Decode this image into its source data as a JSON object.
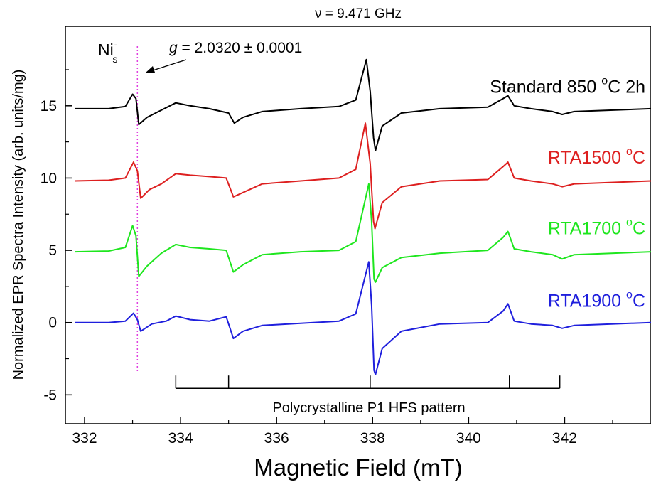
{
  "chart_data": {
    "type": "line",
    "title": "ν = 9.471 GHz",
    "xlabel": "Magnetic Field (mT)",
    "ylabel": "Normalized EPR Spectra Intensity (arb. units/mg)",
    "xlim": [
      331.6,
      343.8
    ],
    "ylim": [
      -7,
      20.5
    ],
    "xticks": [
      332,
      334,
      336,
      338,
      340,
      342
    ],
    "yticks": [
      -5,
      0,
      5,
      10,
      15
    ],
    "grid": false,
    "legend_placement": "right-of-traces",
    "series": [
      {
        "name": "Standard 850 °C 2h",
        "label_main": "Standard 850 ",
        "label_deg": "o",
        "label_tail": "C 2h",
        "color": "#000000",
        "points": [
          [
            331.8,
            14.8
          ],
          [
            332.5,
            14.8
          ],
          [
            332.85,
            14.95
          ],
          [
            333.0,
            15.8
          ],
          [
            333.07,
            15.5
          ],
          [
            333.13,
            13.7
          ],
          [
            333.3,
            14.2
          ],
          [
            333.6,
            14.7
          ],
          [
            333.9,
            15.2
          ],
          [
            334.2,
            15.0
          ],
          [
            334.6,
            14.8
          ],
          [
            335.0,
            14.5
          ],
          [
            335.12,
            13.8
          ],
          [
            335.3,
            14.2
          ],
          [
            335.7,
            14.6
          ],
          [
            336.5,
            14.8
          ],
          [
            337.3,
            14.95
          ],
          [
            337.65,
            15.4
          ],
          [
            337.87,
            18.2
          ],
          [
            337.95,
            16.0
          ],
          [
            338.02,
            12.8
          ],
          [
            338.06,
            11.9
          ],
          [
            338.2,
            13.6
          ],
          [
            338.6,
            14.5
          ],
          [
            339.4,
            14.8
          ],
          [
            340.4,
            14.9
          ],
          [
            340.72,
            15.5
          ],
          [
            340.82,
            15.7
          ],
          [
            340.95,
            15.0
          ],
          [
            341.3,
            14.8
          ],
          [
            341.75,
            14.6
          ],
          [
            341.95,
            14.4
          ],
          [
            342.2,
            14.6
          ],
          [
            343.8,
            14.8
          ]
        ]
      },
      {
        "name": "RTA1500 °C",
        "label_main": "RTA1500 ",
        "label_deg": "o",
        "label_tail": "C",
        "color": "#dd1f1f",
        "points": [
          [
            331.8,
            9.8
          ],
          [
            332.5,
            9.85
          ],
          [
            332.85,
            10.0
          ],
          [
            333.02,
            11.1
          ],
          [
            333.1,
            10.5
          ],
          [
            333.17,
            8.6
          ],
          [
            333.35,
            9.2
          ],
          [
            333.6,
            9.6
          ],
          [
            333.9,
            10.3
          ],
          [
            334.2,
            10.2
          ],
          [
            334.6,
            10.1
          ],
          [
            334.95,
            10.0
          ],
          [
            335.1,
            8.7
          ],
          [
            335.3,
            9.0
          ],
          [
            335.7,
            9.6
          ],
          [
            336.5,
            9.8
          ],
          [
            337.3,
            10.0
          ],
          [
            337.65,
            10.6
          ],
          [
            337.85,
            13.8
          ],
          [
            337.95,
            11.0
          ],
          [
            338.02,
            7.0
          ],
          [
            338.05,
            6.5
          ],
          [
            338.2,
            8.3
          ],
          [
            338.6,
            9.4
          ],
          [
            339.4,
            9.8
          ],
          [
            340.4,
            9.9
          ],
          [
            340.72,
            10.8
          ],
          [
            340.82,
            11.1
          ],
          [
            340.95,
            10.0
          ],
          [
            341.3,
            9.8
          ],
          [
            341.75,
            9.6
          ],
          [
            341.95,
            9.4
          ],
          [
            342.2,
            9.6
          ],
          [
            343.8,
            9.8
          ]
        ]
      },
      {
        "name": "RTA1700 °C",
        "label_main": "RTA1700 ",
        "label_deg": "o",
        "label_tail": "C",
        "color": "#1ee61e",
        "points": [
          [
            331.8,
            4.9
          ],
          [
            332.5,
            4.95
          ],
          [
            332.85,
            5.2
          ],
          [
            333.0,
            6.7
          ],
          [
            333.07,
            6.0
          ],
          [
            333.13,
            3.2
          ],
          [
            333.3,
            3.9
          ],
          [
            333.6,
            4.8
          ],
          [
            333.9,
            5.4
          ],
          [
            334.2,
            5.2
          ],
          [
            334.6,
            5.1
          ],
          [
            334.95,
            5.0
          ],
          [
            335.1,
            3.5
          ],
          [
            335.3,
            4.0
          ],
          [
            335.7,
            4.7
          ],
          [
            336.5,
            4.9
          ],
          [
            337.3,
            5.0
          ],
          [
            337.65,
            5.6
          ],
          [
            337.92,
            9.6
          ],
          [
            337.98,
            7.0
          ],
          [
            338.03,
            3.0
          ],
          [
            338.06,
            2.8
          ],
          [
            338.2,
            3.8
          ],
          [
            338.6,
            4.5
          ],
          [
            339.4,
            4.8
          ],
          [
            340.4,
            5.0
          ],
          [
            340.72,
            5.9
          ],
          [
            340.82,
            6.3
          ],
          [
            340.95,
            5.1
          ],
          [
            341.3,
            4.9
          ],
          [
            341.75,
            4.7
          ],
          [
            341.95,
            4.4
          ],
          [
            342.2,
            4.7
          ],
          [
            343.8,
            4.9
          ]
        ]
      },
      {
        "name": "RTA1900 °C",
        "label_main": "RTA1900 ",
        "label_deg": "o",
        "label_tail": "C",
        "color": "#1f1fdd",
        "points": [
          [
            331.8,
            0.0
          ],
          [
            332.5,
            0.0
          ],
          [
            332.85,
            0.1
          ],
          [
            333.02,
            0.65
          ],
          [
            333.1,
            0.2
          ],
          [
            333.17,
            -0.6
          ],
          [
            333.4,
            -0.1
          ],
          [
            333.7,
            0.1
          ],
          [
            333.9,
            0.45
          ],
          [
            334.2,
            0.2
          ],
          [
            334.6,
            0.1
          ],
          [
            334.95,
            0.4
          ],
          [
            335.1,
            -1.1
          ],
          [
            335.3,
            -0.6
          ],
          [
            335.7,
            -0.2
          ],
          [
            336.5,
            -0.05
          ],
          [
            337.3,
            0.1
          ],
          [
            337.65,
            0.6
          ],
          [
            337.92,
            4.2
          ],
          [
            337.98,
            1.2
          ],
          [
            338.03,
            -3.3
          ],
          [
            338.06,
            -3.6
          ],
          [
            338.2,
            -1.8
          ],
          [
            338.6,
            -0.6
          ],
          [
            339.4,
            -0.1
          ],
          [
            340.4,
            0.0
          ],
          [
            340.72,
            0.8
          ],
          [
            340.82,
            1.3
          ],
          [
            340.95,
            0.1
          ],
          [
            341.3,
            -0.1
          ],
          [
            341.75,
            -0.2
          ],
          [
            341.95,
            -0.4
          ],
          [
            342.2,
            -0.2
          ],
          [
            343.8,
            0.0
          ]
        ]
      }
    ],
    "marker_line": {
      "x": 333.1,
      "color": "#e040e0",
      "style": "dotted"
    },
    "annotations": {
      "ni_label": "Ni",
      "ni_sup": "-",
      "ni_sub": "s",
      "g_var": "g",
      "g_value": " = 2.0320 ± 0.0001",
      "hfs_label": "Polycrystalline P1 HFS pattern",
      "hfs_ticks": [
        333.9,
        335.0,
        337.95,
        340.85,
        341.9
      ]
    }
  }
}
